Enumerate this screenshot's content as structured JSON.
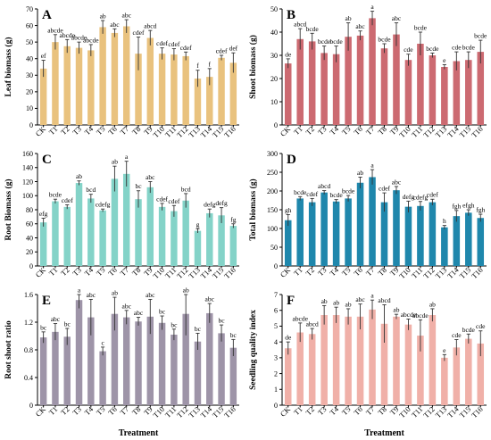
{
  "x_title": "Treatment",
  "chart_data": [
    {
      "type": "bar",
      "letter": "A",
      "ylabel": "Leaf biomass (g)",
      "color": "#E9C27E",
      "ylim": [
        0,
        70
      ],
      "yticks": [
        0,
        10,
        20,
        30,
        40,
        50,
        60,
        70
      ],
      "categories": [
        "CK",
        "T1",
        "T2",
        "T3",
        "T4",
        "T5",
        "T6",
        "T7",
        "T8",
        "T9",
        "T10",
        "T11",
        "T12",
        "T13",
        "T14",
        "T15",
        "T16"
      ],
      "values": [
        34,
        50,
        47.5,
        46.5,
        45,
        59,
        55.5,
        59.5,
        43,
        52.5,
        43,
        42.5,
        41.5,
        28,
        29,
        40.5,
        37.5
      ],
      "errors": [
        5,
        4.5,
        4,
        3.5,
        3.5,
        4,
        2.5,
        4,
        10,
        4.5,
        3.5,
        3.5,
        2.5,
        5,
        5,
        1.5,
        6
      ],
      "labels": [
        "ef",
        "abcde",
        "abcde",
        "abcde",
        "abcde",
        "ab",
        "abc",
        "abc",
        "cdef",
        "abcd",
        "cdef",
        "cdef",
        "cdef",
        "f",
        "f",
        "cdef",
        "def"
      ]
    },
    {
      "type": "bar",
      "letter": "B",
      "ylabel": "Shoot biomass (g)",
      "color": "#CC6A71",
      "ylim": [
        0,
        50
      ],
      "yticks": [
        0,
        10,
        20,
        30,
        40,
        50
      ],
      "categories": [
        "CK",
        "T1",
        "T2",
        "T3",
        "T4",
        "T5",
        "T6",
        "T7",
        "T8",
        "T9",
        "T10",
        "T11",
        "T12",
        "T13",
        "T14",
        "T15",
        "T16"
      ],
      "values": [
        26.5,
        37,
        36,
        31,
        30.5,
        38,
        38.5,
        46,
        33,
        39,
        28,
        35,
        30,
        25,
        27.5,
        28,
        31.5
      ],
      "errors": [
        2,
        4.5,
        3.5,
        3,
        3.5,
        6,
        2,
        3,
        2,
        5,
        2.5,
        5,
        1,
        1,
        4,
        3.5,
        5
      ],
      "labels": [
        "de",
        "abcd",
        "bcde",
        "bcde",
        "bcde",
        "ab",
        "abc",
        "a",
        "bcde",
        "abc",
        "cde",
        "bcde",
        "bcde",
        "e",
        "cde",
        "bcde",
        "bcde"
      ]
    },
    {
      "type": "bar",
      "letter": "C",
      "ylabel": "Root Biomass (g)",
      "color": "#84D3C8",
      "ylim": [
        0,
        160
      ],
      "yticks": [
        0,
        20,
        40,
        60,
        80,
        100,
        120,
        140,
        160
      ],
      "categories": [
        "CK",
        "T1",
        "T2",
        "T3",
        "T4",
        "T5",
        "T6",
        "T7",
        "T8",
        "T9",
        "T10",
        "T11",
        "T12",
        "T13",
        "T14",
        "T15",
        "T16"
      ],
      "values": [
        62,
        92,
        84,
        118,
        96,
        79,
        124,
        131,
        95,
        112,
        84,
        78,
        93,
        50,
        75,
        72,
        57
      ],
      "errors": [
        6,
        3,
        3,
        3,
        6,
        2,
        18,
        18,
        12,
        8,
        5,
        8,
        10,
        3,
        6,
        11,
        3
      ],
      "labels": [
        "efg",
        "bcde",
        "cdef",
        "ab",
        "bcd",
        "cdefg",
        "ab",
        "a",
        "bc",
        "abc",
        "cdef",
        "cdef",
        "bcd",
        "g",
        "defg",
        "defg",
        "fg"
      ]
    },
    {
      "type": "bar",
      "letter": "D",
      "ylabel": "Total biomass (g)",
      "color": "#1F87AC",
      "ylim": [
        0,
        300
      ],
      "yticks": [
        0,
        50,
        100,
        150,
        200,
        250,
        300
      ],
      "categories": [
        "CK",
        "T1",
        "T2",
        "T3",
        "T4",
        "T5",
        "T6",
        "T7",
        "T8",
        "T9",
        "T10",
        "T11",
        "T12",
        "T13",
        "T14",
        "T15",
        "T16"
      ],
      "values": [
        122,
        180,
        170,
        196,
        172,
        180,
        222,
        237,
        170,
        202,
        158,
        160,
        170,
        103,
        133,
        142,
        128
      ],
      "errors": [
        15,
        5,
        10,
        5,
        5,
        8,
        15,
        20,
        25,
        10,
        15,
        12,
        8,
        5,
        15,
        8,
        10
      ],
      "labels": [
        "gh",
        "bcde",
        "cdef",
        "abcd",
        "bcde",
        "bcde",
        "ab",
        "a",
        "cdef",
        "abc",
        "defg",
        "cdefg",
        "cdef",
        "h",
        "fgh",
        "efgh",
        "fgh"
      ]
    },
    {
      "type": "bar",
      "letter": "E",
      "ylabel": "Root shoot ratio",
      "color": "#9E94A8",
      "ylim": [
        0,
        1.6
      ],
      "yticks": [
        0,
        0.4,
        0.8,
        1.2,
        1.6
      ],
      "ytick_labels": [
        "0",
        "0.4",
        "0.8",
        "1.2",
        "1.6"
      ],
      "categories": [
        "CK",
        "T1",
        "T2",
        "T3",
        "T4",
        "T5",
        "T6",
        "T7",
        "T8",
        "T9",
        "T10",
        "T11",
        "T12",
        "T13",
        "T14",
        "T15",
        "T16"
      ],
      "values": [
        0.98,
        1.06,
        0.99,
        1.52,
        1.27,
        0.78,
        1.32,
        1.27,
        1.21,
        1.28,
        1.19,
        1.02,
        1.32,
        0.92,
        1.33,
        1.04,
        0.83
      ],
      "errors": [
        0.08,
        0.12,
        0.12,
        0.12,
        0.26,
        0.06,
        0.24,
        0.1,
        0.06,
        0.25,
        0.1,
        0.08,
        0.31,
        0.12,
        0.14,
        0.12,
        0.12
      ],
      "labels": [
        "bc",
        "abc",
        "bc",
        "a",
        "abc",
        "c",
        "ab",
        "abc",
        "abc",
        "abc",
        "bc",
        "bc",
        "ab",
        "bc",
        "abc",
        "bc",
        "bc"
      ]
    },
    {
      "type": "bar",
      "letter": "F",
      "ylabel": "Seedling quality index",
      "color": "#F0B0A8",
      "ylim": [
        0,
        7
      ],
      "yticks": [
        0,
        1,
        2,
        3,
        4,
        5,
        6,
        7
      ],
      "categories": [
        "CK",
        "T1",
        "T2",
        "T3",
        "T4",
        "T5",
        "T6",
        "T7",
        "T8",
        "T9",
        "T10",
        "T11",
        "T12",
        "T13",
        "T14",
        "T15",
        "T16"
      ],
      "values": [
        3.6,
        4.6,
        4.5,
        5.7,
        5.7,
        5.6,
        5.6,
        6.05,
        5.15,
        5.6,
        5.1,
        4.4,
        5.7,
        3,
        3.65,
        4.2,
        3.9
      ],
      "errors": [
        0.4,
        0.6,
        0.35,
        0.6,
        0.5,
        0.5,
        0.8,
        0.6,
        1.2,
        0.15,
        0.35,
        1.0,
        0.4,
        0.2,
        0.5,
        0.3,
        0.8
      ],
      "labels": [
        "de",
        "abcde",
        "abcd",
        "ab",
        "ab",
        "ab",
        "abc",
        "a",
        "abcd",
        "ab",
        "abcde",
        "abcde",
        "ab",
        "e",
        "cde",
        "bcde",
        "cde"
      ]
    }
  ]
}
